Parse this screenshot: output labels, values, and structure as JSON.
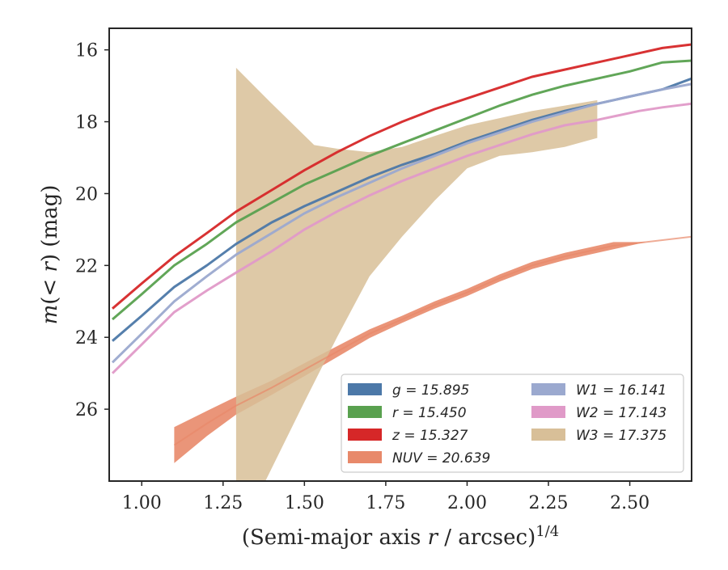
{
  "chart_data": {
    "type": "line",
    "xlabel": "(Semi-major axis r / arcsec)^{1/4}",
    "ylabel": "m(< r) (mag)",
    "xlim": [
      0.9,
      2.69
    ],
    "ylim": [
      28.0,
      15.4
    ],
    "y_inverted": true,
    "grid": false,
    "legend_placement": "lower-right",
    "x_ticks": [
      "1.00",
      "1.25",
      "1.50",
      "1.75",
      "2.00",
      "2.25",
      "2.50"
    ],
    "y_ticks": [
      "16",
      "18",
      "20",
      "22",
      "24",
      "26"
    ],
    "series": [
      {
        "name": "g = 15.895",
        "color": "#4c78a8",
        "points": [
          [
            0.91,
            24.1
          ],
          [
            1.0,
            23.4
          ],
          [
            1.1,
            22.6
          ],
          [
            1.2,
            22.0
          ],
          [
            1.29,
            21.4
          ],
          [
            1.4,
            20.8
          ],
          [
            1.5,
            20.35
          ],
          [
            1.6,
            19.95
          ],
          [
            1.7,
            19.55
          ],
          [
            1.8,
            19.2
          ],
          [
            1.9,
            18.9
          ],
          [
            2.0,
            18.55
          ],
          [
            2.1,
            18.25
          ],
          [
            2.2,
            17.95
          ],
          [
            2.3,
            17.7
          ],
          [
            2.4,
            17.5
          ],
          [
            2.5,
            17.3
          ],
          [
            2.6,
            17.1
          ],
          [
            2.69,
            16.8
          ]
        ]
      },
      {
        "name": "r = 15.450",
        "color": "#59a14f",
        "points": [
          [
            0.91,
            23.5
          ],
          [
            1.0,
            22.8
          ],
          [
            1.1,
            22.0
          ],
          [
            1.2,
            21.4
          ],
          [
            1.29,
            20.8
          ],
          [
            1.4,
            20.25
          ],
          [
            1.5,
            19.75
          ],
          [
            1.6,
            19.35
          ],
          [
            1.7,
            18.95
          ],
          [
            1.8,
            18.6
          ],
          [
            1.9,
            18.25
          ],
          [
            2.0,
            17.9
          ],
          [
            2.1,
            17.55
          ],
          [
            2.2,
            17.25
          ],
          [
            2.3,
            17.0
          ],
          [
            2.4,
            16.8
          ],
          [
            2.5,
            16.6
          ],
          [
            2.6,
            16.35
          ],
          [
            2.69,
            16.3
          ]
        ]
      },
      {
        "name": "z = 15.327",
        "color": "#d62728",
        "points": [
          [
            0.91,
            23.2
          ],
          [
            1.0,
            22.5
          ],
          [
            1.1,
            21.75
          ],
          [
            1.2,
            21.1
          ],
          [
            1.29,
            20.5
          ],
          [
            1.4,
            19.9
          ],
          [
            1.5,
            19.35
          ],
          [
            1.6,
            18.85
          ],
          [
            1.7,
            18.4
          ],
          [
            1.8,
            18.0
          ],
          [
            1.9,
            17.65
          ],
          [
            2.0,
            17.35
          ],
          [
            2.1,
            17.05
          ],
          [
            2.2,
            16.75
          ],
          [
            2.3,
            16.55
          ],
          [
            2.4,
            16.35
          ],
          [
            2.5,
            16.15
          ],
          [
            2.6,
            15.95
          ],
          [
            2.69,
            15.85
          ]
        ]
      },
      {
        "name": "NUV = 20.639",
        "color": "#e8896a",
        "points": [
          [
            1.1,
            27.0
          ],
          [
            1.2,
            26.4
          ],
          [
            1.29,
            25.9
          ],
          [
            1.4,
            25.4
          ],
          [
            1.5,
            24.9
          ],
          [
            1.6,
            24.4
          ],
          [
            1.7,
            23.9
          ],
          [
            1.8,
            23.5
          ],
          [
            1.9,
            23.1
          ],
          [
            2.0,
            22.75
          ],
          [
            2.1,
            22.35
          ],
          [
            2.2,
            22.0
          ],
          [
            2.3,
            21.75
          ],
          [
            2.4,
            21.55
          ],
          [
            2.45,
            21.45
          ],
          [
            2.55,
            21.35
          ],
          [
            2.69,
            21.2
          ]
        ],
        "band_halfwidth": [
          0.5,
          0.35,
          0.25,
          0.2,
          0.18,
          0.15,
          0.12,
          0.1,
          0.1,
          0.1,
          0.1,
          0.1,
          0.1,
          0.1,
          0.1,
          0.0,
          0.0
        ]
      },
      {
        "name": "W1 = 16.141",
        "color": "#9ba9cf",
        "points": [
          [
            0.91,
            24.7
          ],
          [
            1.0,
            23.9
          ],
          [
            1.1,
            23.0
          ],
          [
            1.2,
            22.3
          ],
          [
            1.29,
            21.7
          ],
          [
            1.4,
            21.1
          ],
          [
            1.5,
            20.55
          ],
          [
            1.6,
            20.1
          ],
          [
            1.7,
            19.7
          ],
          [
            1.8,
            19.3
          ],
          [
            1.9,
            18.95
          ],
          [
            2.0,
            18.6
          ],
          [
            2.1,
            18.3
          ],
          [
            2.2,
            18.0
          ],
          [
            2.3,
            17.75
          ],
          [
            2.4,
            17.5
          ],
          [
            2.5,
            17.3
          ],
          [
            2.6,
            17.1
          ],
          [
            2.69,
            16.95
          ]
        ]
      },
      {
        "name": "W2 = 17.143",
        "color": "#e09ac8",
        "points": [
          [
            0.91,
            25.0
          ],
          [
            1.0,
            24.2
          ],
          [
            1.1,
            23.3
          ],
          [
            1.2,
            22.7
          ],
          [
            1.29,
            22.2
          ],
          [
            1.4,
            21.6
          ],
          [
            1.5,
            21.0
          ],
          [
            1.6,
            20.5
          ],
          [
            1.7,
            20.05
          ],
          [
            1.8,
            19.65
          ],
          [
            1.9,
            19.3
          ],
          [
            2.0,
            18.95
          ],
          [
            2.1,
            18.65
          ],
          [
            2.2,
            18.35
          ],
          [
            2.3,
            18.1
          ],
          [
            2.4,
            17.95
          ],
          [
            2.53,
            17.7
          ],
          [
            2.6,
            17.6
          ],
          [
            2.69,
            17.5
          ]
        ]
      },
      {
        "name": "W3 = 17.375",
        "color": "#d8bf98",
        "upper": [
          [
            1.29,
            16.5
          ],
          [
            1.4,
            17.5
          ],
          [
            1.53,
            18.65
          ],
          [
            1.6,
            18.75
          ],
          [
            1.7,
            18.85
          ],
          [
            1.8,
            18.7
          ],
          [
            1.9,
            18.4
          ],
          [
            2.0,
            18.1
          ],
          [
            2.1,
            17.9
          ],
          [
            2.2,
            17.7
          ],
          [
            2.3,
            17.55
          ],
          [
            2.4,
            17.4
          ]
        ],
        "lower": [
          [
            1.29,
            28.0
          ],
          [
            1.38,
            28.0
          ],
          [
            1.5,
            25.8
          ],
          [
            1.6,
            24.0
          ],
          [
            1.7,
            22.3
          ],
          [
            1.8,
            21.2
          ],
          [
            1.9,
            20.2
          ],
          [
            2.0,
            19.3
          ],
          [
            2.1,
            18.95
          ],
          [
            2.2,
            18.85
          ],
          [
            2.3,
            18.7
          ],
          [
            2.4,
            18.45
          ]
        ]
      }
    ]
  }
}
